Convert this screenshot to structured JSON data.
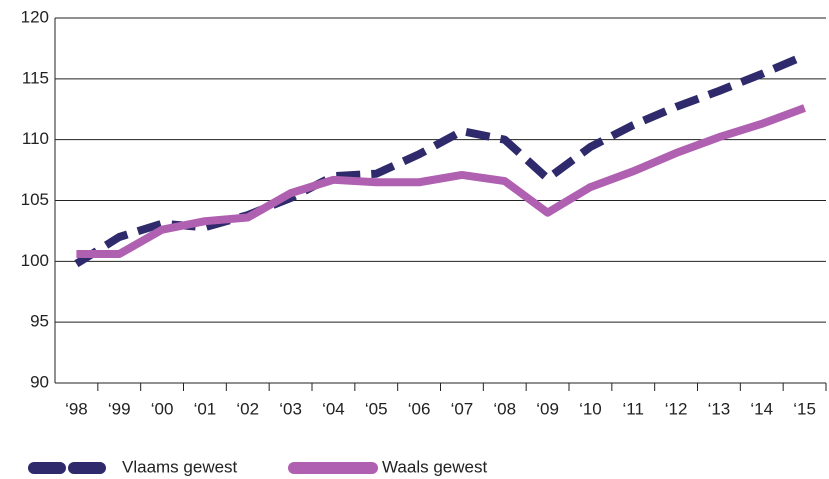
{
  "chart_data": {
    "type": "line",
    "categories": [
      "‘98",
      "‘99",
      "‘00",
      "‘01",
      "‘02",
      "‘03",
      "‘04",
      "‘05",
      "‘06",
      "‘07",
      "‘08",
      "‘09",
      "‘10",
      "‘11",
      "‘12",
      "‘13",
      "‘14",
      "‘15"
    ],
    "series": [
      {
        "name": "Vlaams gewest",
        "color": "#2e2a6b",
        "dashed": true,
        "values": [
          99.8,
          102,
          103.1,
          102.8,
          103.8,
          105.2,
          107,
          107.2,
          108.8,
          110.7,
          110,
          106.8,
          109.4,
          111.2,
          112.7,
          114,
          115.4,
          116.9
        ]
      },
      {
        "name": "Waals gewest",
        "color": "#b060b0",
        "dashed": false,
        "values": [
          100.6,
          100.6,
          102.6,
          103.3,
          103.6,
          105.6,
          106.7,
          106.5,
          106.5,
          107.1,
          106.6,
          104,
          106.1,
          107.4,
          108.9,
          110.2,
          111.3,
          112.6
        ]
      }
    ],
    "ylim": [
      90,
      120
    ],
    "yticks": [
      90,
      95,
      100,
      105,
      110,
      115,
      120
    ],
    "grid": true
  }
}
